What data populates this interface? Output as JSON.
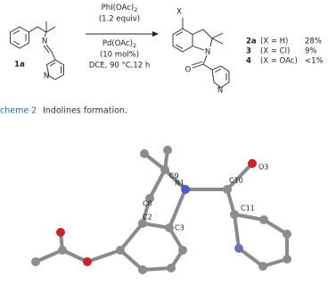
{
  "scheme": {
    "reactant": {
      "label": "1a",
      "atoms": [
        "N",
        "N"
      ]
    },
    "conditions_above": [
      {
        "text": "PhI(OAc)",
        "sub": "2"
      },
      {
        "text": "(1.2 equiv)"
      }
    ],
    "conditions_below": [
      {
        "text": "Pd(OAc)",
        "sub": "2"
      },
      {
        "text": "(10 mol%)"
      },
      {
        "text": "DCE, 90 °C,12 h"
      }
    ],
    "product": {
      "substituent": "X",
      "atoms": [
        "N",
        "O",
        "N"
      ]
    },
    "products": [
      {
        "compound": "2a",
        "condition": "(X = H)",
        "yield": "28%"
      },
      {
        "compound": "3",
        "condition": "(X = Cl)",
        "yield": "9%"
      },
      {
        "compound": "4",
        "condition": "(X = OAc)",
        "yield": "<1%"
      }
    ]
  },
  "caption": {
    "label": "cheme 2",
    "text": "Indolines formation."
  },
  "crystal": {
    "atom_labels": [
      "C9",
      "O3",
      "N1",
      "C10",
      "C8",
      "C11",
      "C2",
      "C3"
    ]
  }
}
